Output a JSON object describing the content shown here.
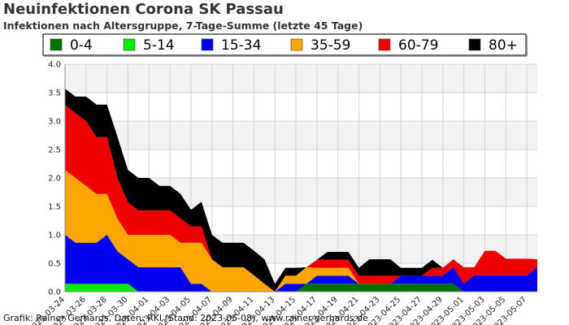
{
  "title": "Neuinfektionen Corona SK Passau",
  "subtitle": "Infektionen nach Altersgruppe, 7-Tage-Summe (letzte 45 Tage)",
  "credit": "Grafik: Rainer Gerhards, Daten: RKI (Stand: 2023-05-08), www.rainer-gerhards.de",
  "chart_data": {
    "type": "area",
    "stacked": true,
    "title": "Neuinfektionen Corona SK Passau",
    "subtitle": "Infektionen nach Altersgruppe, 7-Tage-Summe (letzte 45 Tage)",
    "ylim": [
      0,
      4.0
    ],
    "yticks": [
      "0.0",
      "0.5",
      "1.0",
      "1.5",
      "2.0",
      "2.5",
      "3.0",
      "3.5",
      "4.0"
    ],
    "grid": true,
    "legend_position": "top",
    "x": [
      "2023-03-24",
      "2023-03-25",
      "2023-03-26",
      "2023-03-27",
      "2023-03-28",
      "2023-03-29",
      "2023-03-30",
      "2023-03-31",
      "2023-04-01",
      "2023-04-02",
      "2023-04-03",
      "2023-04-04",
      "2023-04-05",
      "2023-04-06",
      "2023-04-07",
      "2023-04-08",
      "2023-04-09",
      "2023-04-10",
      "2023-04-11",
      "2023-04-12",
      "2023-04-13",
      "2023-04-14",
      "2023-04-15",
      "2023-04-16",
      "2023-04-17",
      "2023-04-18",
      "2023-04-19",
      "2023-04-20",
      "2023-04-21",
      "2023-04-22",
      "2023-04-23",
      "2023-04-24",
      "2023-04-25",
      "2023-04-26",
      "2023-04-27",
      "2023-04-28",
      "2023-04-29",
      "2023-04-30",
      "2023-05-01",
      "2023-05-02",
      "2023-05-03",
      "2023-05-04",
      "2023-05-05",
      "2023-05-06",
      "2023-05-07",
      "2023-05-08"
    ],
    "xtick_labels": [
      "2023-03-24",
      "2023-03-26",
      "2023-03-28",
      "2023-03-30",
      "2023-04-01",
      "2023-04-03",
      "2023-04-05",
      "2023-04-07",
      "2023-04-09",
      "2023-04-11",
      "2023-04-13",
      "2023-04-15",
      "2023-04-17",
      "2023-04-19",
      "2023-04-21",
      "2023-04-23",
      "2023-04-25",
      "2023-04-27",
      "2023-04-29",
      "2023-05-01",
      "2023-05-03",
      "2023-05-05",
      "2023-05-07"
    ],
    "series": [
      {
        "name": "0-4",
        "color": "#007000",
        "values": [
          0,
          0,
          0,
          0,
          0,
          0,
          0,
          0,
          0,
          0,
          0,
          0,
          0,
          0,
          0,
          0,
          0,
          0,
          0,
          0,
          0,
          0,
          0,
          0.14,
          0.14,
          0.14,
          0.14,
          0.14,
          0.14,
          0.14,
          0.14,
          0.14,
          0.14,
          0.14,
          0.14,
          0.14,
          0.14,
          0.14,
          0,
          0,
          0,
          0,
          0,
          0,
          0,
          0
        ]
      },
      {
        "name": "5-14",
        "color": "#00ee00",
        "values": [
          0.14,
          0.14,
          0.14,
          0.14,
          0.14,
          0.14,
          0.14,
          0,
          0,
          0,
          0,
          0,
          0,
          0,
          0,
          0,
          0,
          0,
          0,
          0,
          0,
          0,
          0,
          0,
          0,
          0,
          0,
          0,
          0,
          0,
          0,
          0,
          0,
          0,
          0,
          0,
          0,
          0,
          0,
          0,
          0,
          0,
          0,
          0,
          0,
          0
        ]
      },
      {
        "name": "15-34",
        "color": "#0000ee",
        "values": [
          0.86,
          0.72,
          0.72,
          0.72,
          0.86,
          0.57,
          0.43,
          0.43,
          0.43,
          0.43,
          0.43,
          0.43,
          0.14,
          0.14,
          0,
          0,
          0,
          0,
          0,
          0,
          0,
          0.14,
          0.14,
          0,
          0.14,
          0.14,
          0.14,
          0.14,
          0,
          0,
          0,
          0,
          0.14,
          0.14,
          0.14,
          0.14,
          0.14,
          0.29,
          0.14,
          0.29,
          0.29,
          0.29,
          0.29,
          0.29,
          0.29,
          0.43
        ]
      },
      {
        "name": "35-59",
        "color": "#ffa500",
        "values": [
          1.14,
          1.14,
          1.0,
          0.86,
          0.72,
          0.57,
          0.43,
          0.57,
          0.57,
          0.57,
          0.57,
          0.43,
          0.72,
          0.72,
          0.57,
          0.43,
          0.43,
          0.43,
          0.29,
          0.14,
          0,
          0.14,
          0.14,
          0.29,
          0.14,
          0.14,
          0.14,
          0.14,
          0,
          0,
          0,
          0,
          0,
          0,
          0,
          0,
          0,
          0,
          0,
          0,
          0,
          0,
          0,
          0,
          0,
          0
        ]
      },
      {
        "name": "60-79",
        "color": "#ee0000",
        "values": [
          1.14,
          1.14,
          1.14,
          1.0,
          1.0,
          0.72,
          0.57,
          0.43,
          0.43,
          0.43,
          0.43,
          0.43,
          0.29,
          0.29,
          0,
          0,
          0,
          0,
          0,
          0,
          0,
          0,
          0,
          0,
          0.14,
          0.14,
          0.14,
          0.14,
          0.14,
          0.14,
          0.14,
          0.14,
          0,
          0,
          0,
          0.14,
          0.14,
          0.14,
          0.29,
          0.14,
          0.43,
          0.43,
          0.29,
          0.29,
          0.29,
          0.14
        ]
      },
      {
        "name": "80+",
        "color": "#000000",
        "values": [
          0.29,
          0.29,
          0.43,
          0.57,
          0.57,
          0.72,
          0.57,
          0.57,
          0.57,
          0.43,
          0.43,
          0.43,
          0.29,
          0.43,
          0.43,
          0.43,
          0.43,
          0.43,
          0.43,
          0.43,
          0.14,
          0.14,
          0.14,
          0,
          0,
          0.14,
          0.14,
          0.14,
          0.14,
          0.29,
          0.29,
          0.29,
          0.14,
          0.14,
          0.14,
          0.14,
          0,
          0,
          0,
          0,
          0,
          0,
          0,
          0,
          0,
          0
        ]
      }
    ]
  }
}
